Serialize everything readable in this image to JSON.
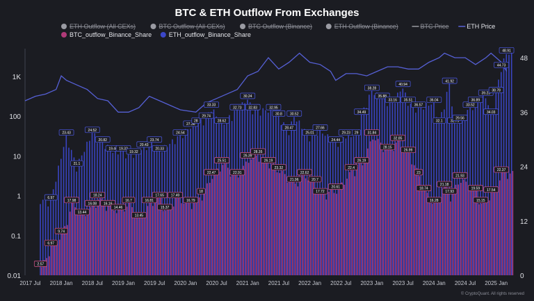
{
  "header": {
    "title": "BTC & ETH Outflow From Exchanges"
  },
  "legend": {
    "items": [
      {
        "label": "ETH Outflow (All CEXs)",
        "kind": "dot",
        "color": "#9a9ba3",
        "hidden": true
      },
      {
        "label": "BTC Outflow (All CEXs)",
        "kind": "dot",
        "color": "#9a9ba3",
        "hidden": true
      },
      {
        "label": "BTC Outflow (Binance)",
        "kind": "dot",
        "color": "#9a9ba3",
        "hidden": true
      },
      {
        "label": "ETH Outflow (Binance)",
        "kind": "dot",
        "color": "#9a9ba3",
        "hidden": true
      },
      {
        "label": "BTC Price",
        "kind": "line",
        "color": "#9a9ba3",
        "hidden": true
      },
      {
        "label": "ETH Price",
        "kind": "line",
        "color": "#5b63d9",
        "hidden": false
      },
      {
        "label": "BTC_outflow_Binance_Share",
        "kind": "dot",
        "color": "#b03a78",
        "hidden": false
      },
      {
        "label": "ETH_outflow_Binance_Share",
        "kind": "dot",
        "color": "#3b47c9",
        "hidden": false
      }
    ]
  },
  "footer": {
    "credit": "© CryptoQuant. All rights reserved"
  },
  "colors": {
    "background": "#1b1c22",
    "btc_bar": "#b03a78",
    "eth_bar": "#3b47c9",
    "eth_price_line": "#5660d6",
    "label_border_btc": "#c0507f",
    "label_border_eth": "#4652cf"
  },
  "chart_data": {
    "type": "bar",
    "x_axis": {
      "ticks": [
        "2017 Jul",
        "2018 Jan",
        "2018 Jul",
        "2019 Jan",
        "2019 Jul",
        "2020 Jan",
        "2020 Jul",
        "2021 Jan",
        "2021 Jul",
        "2022 Jan",
        "2022 Jul",
        "2023 Jan",
        "2023 Jul",
        "2024 Jan",
        "2024 Jul",
        "2025 Jan"
      ],
      "range": [
        "2017-06",
        "2025-04"
      ]
    },
    "y_left": {
      "scale": "log",
      "ticks": [
        "0.01",
        "0.1",
        "1",
        "10",
        "100",
        "1K"
      ],
      "range": [
        0.01,
        5000
      ]
    },
    "y_right": {
      "scale": "linear",
      "ticks": [
        "0",
        "12",
        "24",
        "36",
        "48"
      ],
      "range": [
        0,
        50
      ]
    },
    "grid": false,
    "legend_position": "top",
    "eth_price_series": {
      "name": "ETH Price",
      "points": [
        [
          "2017-06",
          38.5
        ],
        [
          "2017-08",
          39.5
        ],
        [
          "2017-10",
          40
        ],
        [
          "2017-12",
          41
        ],
        [
          "2018-01",
          44
        ],
        [
          "2018-02",
          43
        ],
        [
          "2018-04",
          42
        ],
        [
          "2018-06",
          41
        ],
        [
          "2018-08",
          39
        ],
        [
          "2018-10",
          38.5
        ],
        [
          "2018-12",
          36
        ],
        [
          "2019-02",
          36
        ],
        [
          "2019-04",
          37
        ],
        [
          "2019-06",
          39.5
        ],
        [
          "2019-08",
          38.5
        ],
        [
          "2019-10",
          37.5
        ],
        [
          "2019-12",
          36.5
        ],
        [
          "2020-03",
          36
        ],
        [
          "2020-05",
          38
        ],
        [
          "2020-07",
          39
        ],
        [
          "2020-09",
          40
        ],
        [
          "2020-11",
          41
        ],
        [
          "2021-01",
          44
        ],
        [
          "2021-03",
          45
        ],
        [
          "2021-05",
          48
        ],
        [
          "2021-07",
          45.5
        ],
        [
          "2021-09",
          47
        ],
        [
          "2021-11",
          49
        ],
        [
          "2022-01",
          47
        ],
        [
          "2022-03",
          46.5
        ],
        [
          "2022-05",
          45
        ],
        [
          "2022-06",
          43
        ],
        [
          "2022-08",
          44.5
        ],
        [
          "2022-10",
          44.5
        ],
        [
          "2022-12",
          44
        ],
        [
          "2023-02",
          45
        ],
        [
          "2023-04",
          46
        ],
        [
          "2023-06",
          46
        ],
        [
          "2023-08",
          45.5
        ],
        [
          "2023-10",
          45.5
        ],
        [
          "2023-12",
          47
        ],
        [
          "2024-02",
          48
        ],
        [
          "2024-03",
          49
        ],
        [
          "2024-05",
          48
        ],
        [
          "2024-07",
          48
        ],
        [
          "2024-09",
          46.5
        ],
        [
          "2024-11",
          48
        ],
        [
          "2024-12",
          49
        ],
        [
          "2025-02",
          47
        ],
        [
          "2025-03",
          45
        ]
      ]
    },
    "btc_outflow_binance_share": [
      [
        "2017-09",
        0.015,
        "2.57"
      ],
      [
        "2017-11",
        0.05,
        "6.97"
      ],
      [
        "2018-01",
        0.1,
        "9.74"
      ],
      [
        "2018-03",
        0.6,
        "17.98"
      ],
      [
        "2018-05",
        0.3,
        "13.44"
      ],
      [
        "2018-07",
        0.5,
        "16.08"
      ],
      [
        "2018-08",
        0.8,
        "18.24"
      ],
      [
        "2018-10",
        0.5,
        "16.16"
      ],
      [
        "2018-12",
        0.4,
        "14.46"
      ],
      [
        "2019-02",
        0.6,
        "16.7"
      ],
      [
        "2019-04",
        0.25,
        "13.45"
      ],
      [
        "2019-06",
        0.6,
        "16.81"
      ],
      [
        "2019-08",
        0.8,
        "17.65"
      ],
      [
        "2019-09",
        0.4,
        "15.37"
      ],
      [
        "2019-11",
        0.8,
        "17.49"
      ],
      [
        "2020-02",
        0.6,
        "16.79"
      ],
      [
        "2020-04",
        1,
        "18"
      ],
      [
        "2020-06",
        3,
        "22.47"
      ],
      [
        "2020-08",
        6,
        "25.51"
      ],
      [
        "2020-11",
        3,
        "22.91"
      ],
      [
        "2021-01",
        8,
        "26.39"
      ],
      [
        "2021-03",
        10,
        "28.35"
      ],
      [
        "2021-05",
        6,
        "26.19"
      ],
      [
        "2021-07",
        4,
        "23.32"
      ],
      [
        "2021-10",
        2,
        "21.96"
      ],
      [
        "2021-12",
        3,
        "22.62"
      ],
      [
        "2022-02",
        2,
        "20.7"
      ],
      [
        "2022-03",
        1,
        "17.72"
      ],
      [
        "2022-06",
        1.3,
        "20.61"
      ],
      [
        "2022-09",
        4,
        "22.4"
      ],
      [
        "2022-11",
        6,
        "26.19"
      ],
      [
        "2023-01",
        30,
        "31.84"
      ],
      [
        "2023-04",
        13,
        "28.15"
      ],
      [
        "2023-06",
        22,
        "32.85"
      ],
      [
        "2023-08",
        11,
        "26.99"
      ],
      [
        "2023-10",
        3,
        "23"
      ],
      [
        "2023-11",
        1.2,
        "18.74"
      ],
      [
        "2024-01",
        0.6,
        "16.28"
      ],
      [
        "2024-03",
        1.5,
        "21.18"
      ],
      [
        "2024-04",
        1,
        "17.93"
      ],
      [
        "2024-06",
        2.5,
        "21.93"
      ],
      [
        "2024-09",
        1.2,
        "19.59"
      ],
      [
        "2024-10",
        0.6,
        "15.15"
      ],
      [
        "2024-12",
        1.1,
        "17.54"
      ],
      [
        "2025-02",
        3.5,
        "22.37"
      ]
    ],
    "eth_outflow_binance_share": [
      [
        "2017-11",
        0.7,
        "6.97"
      ],
      [
        "2018-02",
        30,
        "23.43"
      ],
      [
        "2018-04",
        5,
        "21.1"
      ],
      [
        "2018-07",
        35,
        "24.52"
      ],
      [
        "2018-09",
        20,
        "20.82"
      ],
      [
        "2018-11",
        12,
        "19.46"
      ],
      [
        "2019-01",
        12,
        "19.32"
      ],
      [
        "2019-03",
        10,
        "19.32"
      ],
      [
        "2019-05",
        15,
        "20.43"
      ],
      [
        "2019-07",
        20,
        "23.74"
      ],
      [
        "2019-08",
        12,
        "20.33"
      ],
      [
        "2019-12",
        30,
        "24.54"
      ],
      [
        "2020-02",
        50,
        "27.36"
      ],
      [
        "2020-03",
        60,
        "28"
      ],
      [
        "2020-05",
        80,
        "29.74"
      ],
      [
        "2020-06",
        150,
        "33.33"
      ],
      [
        "2020-08",
        60,
        "28.62"
      ],
      [
        "2020-11",
        130,
        "32.73"
      ],
      [
        "2021-01",
        250,
        "30.24"
      ],
      [
        "2021-02",
        130,
        "32.83"
      ],
      [
        "2021-06",
        130,
        "32.95"
      ],
      [
        "2021-07",
        90,
        "30.8"
      ],
      [
        "2021-09",
        40,
        "28.47"
      ],
      [
        "2021-10",
        90,
        "30.52"
      ],
      [
        "2022-01",
        30,
        "25.01"
      ],
      [
        "2022-03",
        40,
        "27.66"
      ],
      [
        "2022-06",
        20,
        "24.44"
      ],
      [
        "2022-08",
        30,
        "29.23"
      ],
      [
        "2022-10",
        30,
        "29"
      ],
      [
        "2022-11",
        100,
        "34.49"
      ],
      [
        "2023-01",
        400,
        "38.28"
      ],
      [
        "2023-03",
        250,
        "35.88"
      ],
      [
        "2023-05",
        200,
        "33.16"
      ],
      [
        "2023-07",
        500,
        "40.94"
      ],
      [
        "2023-08",
        200,
        "35.51"
      ],
      [
        "2023-10",
        150,
        "36.57"
      ],
      [
        "2024-01",
        200,
        "36.04"
      ],
      [
        "2024-02",
        60,
        "32.1"
      ],
      [
        "2024-04",
        600,
        "41.92"
      ],
      [
        "2024-05",
        60,
        "32.79"
      ],
      [
        "2024-06",
        70,
        "29.56"
      ],
      [
        "2024-08",
        150,
        "33.52"
      ],
      [
        "2024-09",
        200,
        "36.89"
      ],
      [
        "2024-11",
        300,
        "39.23"
      ],
      [
        "2024-12",
        100,
        "34.03"
      ],
      [
        "2025-01",
        350,
        "38.78"
      ],
      [
        "2025-02",
        1500,
        "44.73"
      ],
      [
        "2025-03",
        3500,
        "48.91"
      ]
    ]
  }
}
